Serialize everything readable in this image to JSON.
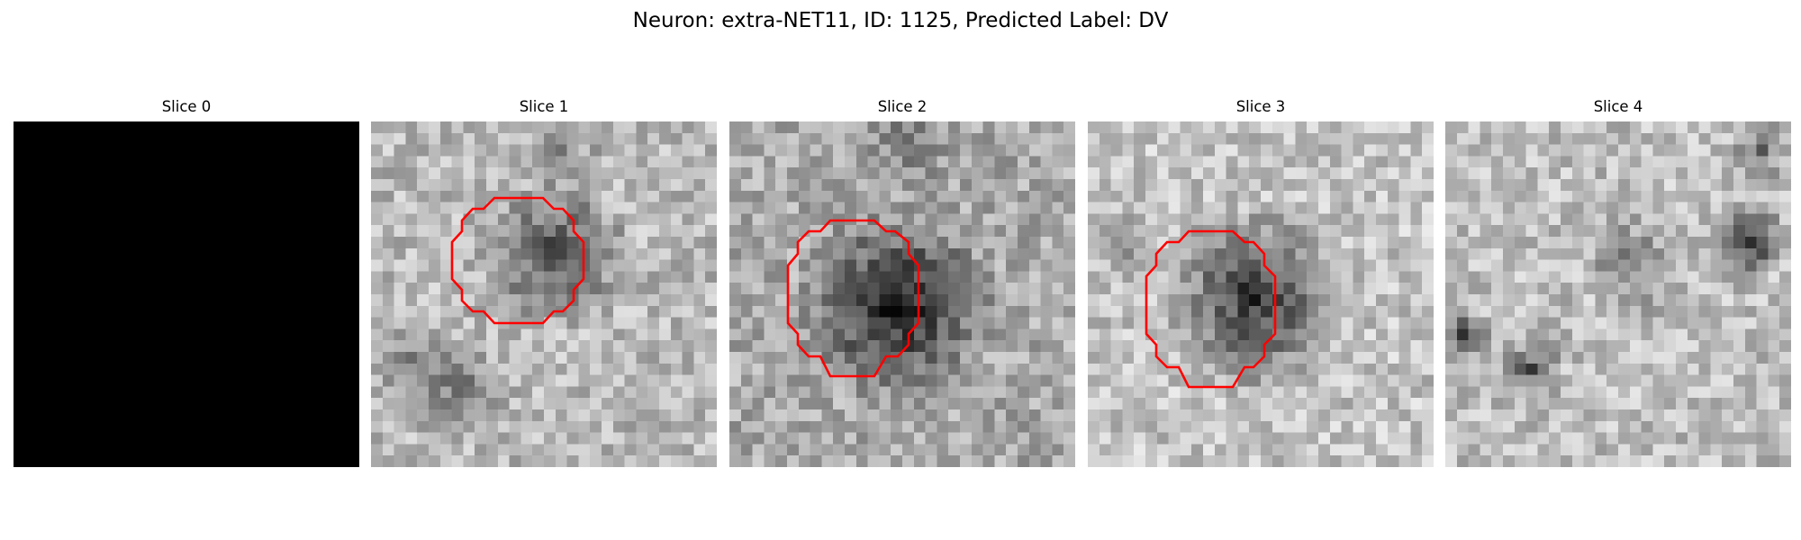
{
  "figure": {
    "title": "Neuron: extra-NET11, ID: 1125, Predicted Label: DV",
    "contour_color": "#ff0000"
  },
  "slices": [
    {
      "title": "Slice 0",
      "has_contour": false
    },
    {
      "title": "Slice 1",
      "has_contour": true
    },
    {
      "title": "Slice 2",
      "has_contour": true
    },
    {
      "title": "Slice 3",
      "has_contour": true
    },
    {
      "title": "Slice 4",
      "has_contour": false
    }
  ]
}
